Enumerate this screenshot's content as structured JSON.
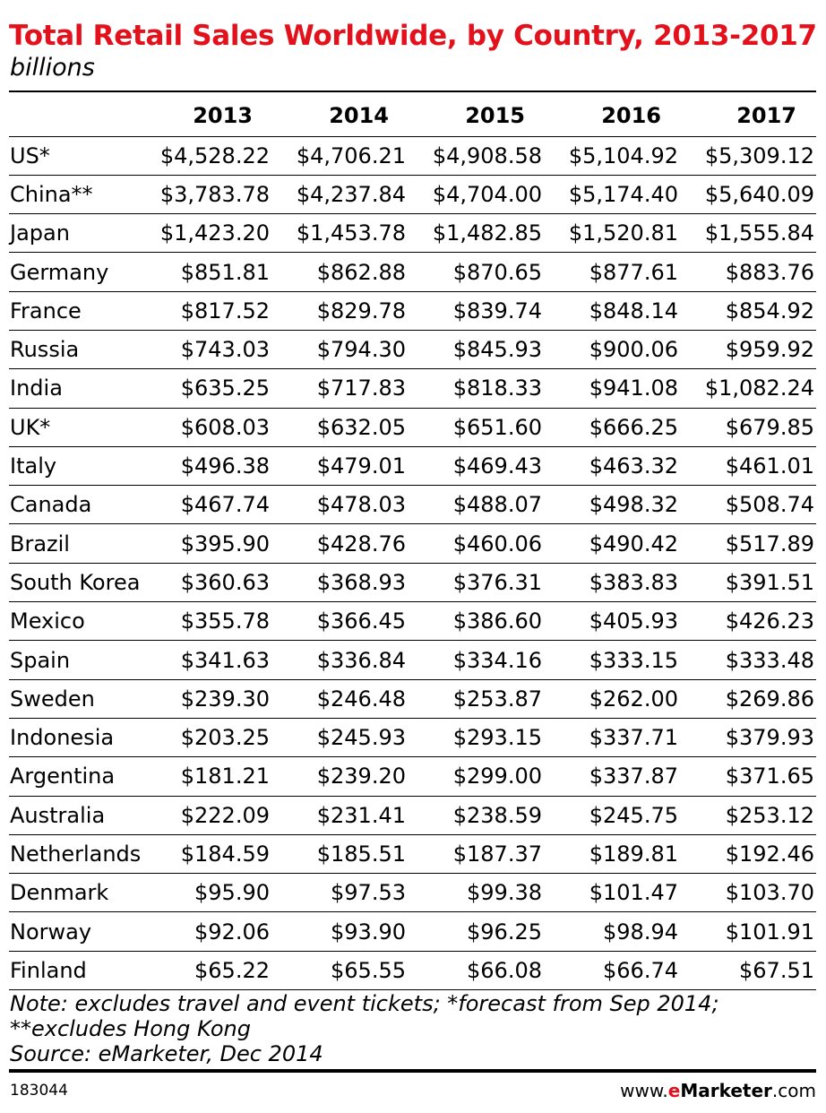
{
  "chart_data": {
    "type": "table",
    "title": "Total Retail Sales Worldwide, by Country, 2013-2017",
    "subtitle": "billions",
    "columns": [
      "",
      "2013",
      "2014",
      "2015",
      "2016",
      "2017"
    ],
    "rows": [
      {
        "country": "US*",
        "values": [
          "$4,528.22",
          "$4,706.21",
          "$4,908.58",
          "$5,104.92",
          "$5,309.12"
        ]
      },
      {
        "country": "China**",
        "values": [
          "$3,783.78",
          "$4,237.84",
          "$4,704.00",
          "$5,174.40",
          "$5,640.09"
        ]
      },
      {
        "country": "Japan",
        "values": [
          "$1,423.20",
          "$1,453.78",
          "$1,482.85",
          "$1,520.81",
          "$1,555.84"
        ]
      },
      {
        "country": "Germany",
        "values": [
          "$851.81",
          "$862.88",
          "$870.65",
          "$877.61",
          "$883.76"
        ]
      },
      {
        "country": "France",
        "values": [
          "$817.52",
          "$829.78",
          "$839.74",
          "$848.14",
          "$854.92"
        ]
      },
      {
        "country": "Russia",
        "values": [
          "$743.03",
          "$794.30",
          "$845.93",
          "$900.06",
          "$959.92"
        ]
      },
      {
        "country": "India",
        "values": [
          "$635.25",
          "$717.83",
          "$818.33",
          "$941.08",
          "$1,082.24"
        ]
      },
      {
        "country": "UK*",
        "values": [
          "$608.03",
          "$632.05",
          "$651.60",
          "$666.25",
          "$679.85"
        ]
      },
      {
        "country": "Italy",
        "values": [
          "$496.38",
          "$479.01",
          "$469.43",
          "$463.32",
          "$461.01"
        ]
      },
      {
        "country": "Canada",
        "values": [
          "$467.74",
          "$478.03",
          "$488.07",
          "$498.32",
          "$508.74"
        ]
      },
      {
        "country": "Brazil",
        "values": [
          "$395.90",
          "$428.76",
          "$460.06",
          "$490.42",
          "$517.89"
        ]
      },
      {
        "country": "South Korea",
        "values": [
          "$360.63",
          "$368.93",
          "$376.31",
          "$383.83",
          "$391.51"
        ]
      },
      {
        "country": "Mexico",
        "values": [
          "$355.78",
          "$366.45",
          "$386.60",
          "$405.93",
          "$426.23"
        ]
      },
      {
        "country": "Spain",
        "values": [
          "$341.63",
          "$336.84",
          "$334.16",
          "$333.15",
          "$333.48"
        ]
      },
      {
        "country": "Sweden",
        "values": [
          "$239.30",
          "$246.48",
          "$253.87",
          "$262.00",
          "$269.86"
        ]
      },
      {
        "country": "Indonesia",
        "values": [
          "$203.25",
          "$245.93",
          "$293.15",
          "$337.71",
          "$379.93"
        ]
      },
      {
        "country": "Argentina",
        "values": [
          "$181.21",
          "$239.20",
          "$299.00",
          "$337.87",
          "$371.65"
        ]
      },
      {
        "country": "Australia",
        "values": [
          "$222.09",
          "$231.41",
          "$238.59",
          "$245.75",
          "$253.12"
        ]
      },
      {
        "country": "Netherlands",
        "values": [
          "$184.59",
          "$185.51",
          "$187.37",
          "$189.81",
          "$192.46"
        ]
      },
      {
        "country": "Denmark",
        "values": [
          "$95.90",
          "$97.53",
          "$99.38",
          "$101.47",
          "$103.70"
        ]
      },
      {
        "country": "Norway",
        "values": [
          "$92.06",
          "$93.90",
          "$96.25",
          "$98.94",
          "$101.91"
        ]
      },
      {
        "country": "Finland",
        "values": [
          "$65.22",
          "$65.55",
          "$66.08",
          "$66.74",
          "$67.51"
        ]
      }
    ],
    "notes": [
      "Note: excludes travel and event tickets; *forecast from Sep 2014;",
      "**excludes Hong Kong",
      "Source: eMarketer, Dec 2014"
    ]
  },
  "footer": {
    "chart_id": "183044",
    "site_prefix": "www.",
    "site_brand_e": "e",
    "site_brand_rest": "Marketer",
    "site_suffix": ".com"
  },
  "colors": {
    "title": "#e3111b",
    "text": "#000000",
    "background": "#ffffff"
  }
}
